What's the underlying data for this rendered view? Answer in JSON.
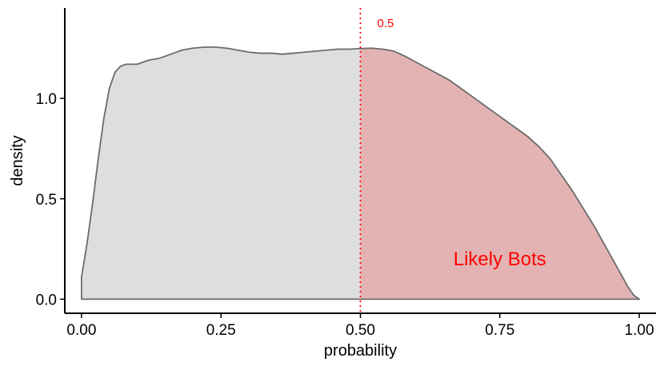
{
  "chart_data": {
    "type": "area",
    "xlabel": "probability",
    "ylabel": "density",
    "xlim": [
      -0.03,
      1.03
    ],
    "ylim": [
      -0.07,
      1.45
    ],
    "x_ticks": [
      0.0,
      0.25,
      0.5,
      0.75,
      1.0
    ],
    "x_tick_labels": [
      "0.00",
      "0.25",
      "0.50",
      "0.75",
      "1.00"
    ],
    "y_ticks": [
      0.0,
      0.5,
      1.0
    ],
    "y_tick_labels": [
      "0.0",
      "0.5",
      "1.0"
    ],
    "grid": false,
    "threshold": {
      "x": 0.5,
      "label": "0.5",
      "color": "#ff0000",
      "style": "dotted"
    },
    "region_label": {
      "text": "Likely Bots",
      "x": 0.75,
      "y": 0.2,
      "color": "#ff0000"
    },
    "colors": {
      "below_threshold": "#dedede",
      "above_threshold": "#e3b3b3",
      "outline": "#6b6b6b"
    },
    "density": {
      "x": [
        0.0,
        0.01,
        0.02,
        0.03,
        0.04,
        0.05,
        0.06,
        0.07,
        0.08,
        0.1,
        0.12,
        0.14,
        0.16,
        0.18,
        0.2,
        0.22,
        0.24,
        0.26,
        0.28,
        0.3,
        0.32,
        0.34,
        0.36,
        0.38,
        0.4,
        0.42,
        0.44,
        0.46,
        0.48,
        0.5,
        0.52,
        0.54,
        0.56,
        0.58,
        0.6,
        0.62,
        0.64,
        0.66,
        0.68,
        0.7,
        0.72,
        0.74,
        0.76,
        0.78,
        0.8,
        0.82,
        0.84,
        0.86,
        0.88,
        0.9,
        0.92,
        0.94,
        0.96,
        0.98,
        0.99,
        1.0
      ],
      "y": [
        0.11,
        0.28,
        0.48,
        0.7,
        0.9,
        1.05,
        1.13,
        1.16,
        1.17,
        1.17,
        1.19,
        1.2,
        1.22,
        1.24,
        1.25,
        1.255,
        1.255,
        1.25,
        1.24,
        1.23,
        1.225,
        1.225,
        1.22,
        1.225,
        1.23,
        1.235,
        1.24,
        1.245,
        1.245,
        1.248,
        1.25,
        1.245,
        1.235,
        1.21,
        1.18,
        1.15,
        1.12,
        1.09,
        1.05,
        1.01,
        0.97,
        0.93,
        0.89,
        0.85,
        0.81,
        0.76,
        0.7,
        0.62,
        0.54,
        0.45,
        0.36,
        0.26,
        0.16,
        0.06,
        0.02,
        0.0
      ]
    }
  }
}
